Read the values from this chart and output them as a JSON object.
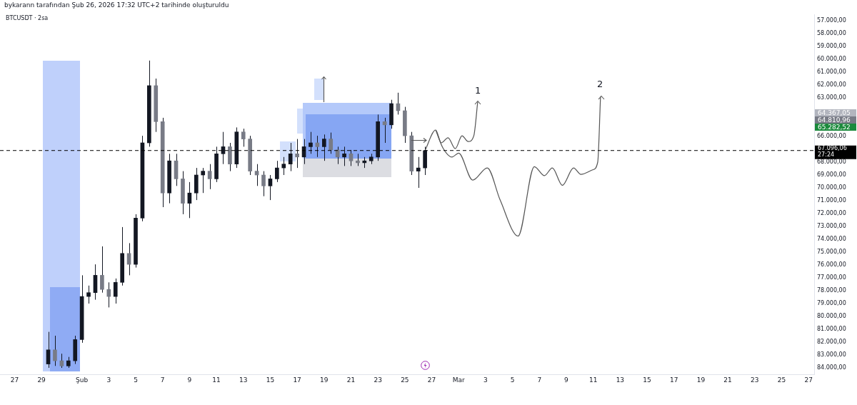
{
  "chart_data": {
    "type": "candlestick",
    "title": "BTCUSDT · 2sa",
    "color": "#131722",
    "annotations": [
      "bykarann tarafından Şub 26, 2026 17:32 UTC+2 tarihinde oluşturuldu",
      "1",
      "2",
      "64.367,05",
      "64.810,96",
      "65.282,52"
    ],
    "colors": [
      "#131722",
      "#787b86",
      "#787b86",
      "#131722",
      "#131722",
      "#131722",
      "#131722",
      "#131722",
      "#787b86",
      "#787b86",
      "#131722",
      "#131722",
      "#787b86",
      "#131722",
      "#131722",
      "#131722",
      "#787b86",
      "#787b86",
      "#131722",
      "#787b86",
      "#787b86",
      "#131722",
      "#131722",
      "#131722",
      "#787b86",
      "#131722",
      "#131722",
      "#787b86",
      "#131722",
      "#787b86",
      "#787b86",
      "#787b86",
      "#787b86",
      "#131722",
      "#131722",
      "#131722",
      "#131722",
      "#787b86",
      "#131722",
      "#131722",
      "#787b86",
      "#131722",
      "#787b86",
      "#787b86",
      "#131722",
      "#787b86",
      "#787b86",
      "#131722",
      "#131722",
      "#131722",
      "#787b86",
      "#131722",
      "#787b86",
      "#787b86",
      "#787b86",
      "#131722",
      "#131722"
    ],
    "x": [
      "2026-01-29T12:00",
      "2026-01-30",
      "2026-01-30T12:00",
      "2026-01-31",
      "2026-01-31T12:00",
      "2026-02-01",
      "2026-02-01T12:00",
      "2026-02-02",
      "2026-02-02T12:00",
      "2026-02-03",
      "2026-02-03T12:00",
      "2026-02-04",
      "2026-02-04T12:00",
      "2026-02-05",
      "2026-02-05T12:00",
      "2026-02-06",
      "2026-02-06T12:00",
      "2026-02-07",
      "2026-02-07T12:00",
      "2026-02-08",
      "2026-02-08T12:00",
      "2026-02-09",
      "2026-02-09T12:00",
      "2026-02-10",
      "2026-02-10T12:00",
      "2026-02-11",
      "2026-02-11T12:00",
      "2026-02-12",
      "2026-02-12T12:00",
      "2026-02-13",
      "2026-02-13T12:00",
      "2026-02-14",
      "2026-02-14T12:00",
      "2026-02-15",
      "2026-02-15T12:00",
      "2026-02-16",
      "2026-02-16T12:00",
      "2026-02-17",
      "2026-02-17T12:00",
      "2026-02-18",
      "2026-02-18T12:00",
      "2026-02-19",
      "2026-02-19T12:00",
      "2026-02-20",
      "2026-02-20T12:00",
      "2026-02-21",
      "2026-02-21T12:00",
      "2026-02-22",
      "2026-02-22T12:00",
      "2026-02-23",
      "2026-02-23T12:00",
      "2026-02-24",
      "2026-02-24T12:00",
      "2026-02-25",
      "2026-02-25T12:00",
      "2026-02-26",
      "2026-02-26T12:00"
    ],
    "ohlc": [
      [
        83700,
        84000,
        81200,
        82600
      ],
      [
        82600,
        83850,
        81500,
        83450
      ],
      [
        83450,
        84000,
        82900,
        83850
      ],
      [
        83850,
        84000,
        83150,
        83450
      ],
      [
        83450,
        83700,
        81500,
        81800
      ],
      [
        81800,
        82050,
        76800,
        78450
      ],
      [
        78450,
        79000,
        77600,
        78150
      ],
      [
        78150,
        78700,
        75950,
        76800
      ],
      [
        76800,
        78150,
        74550,
        77900
      ],
      [
        77900,
        79300,
        77350,
        78450
      ],
      [
        78450,
        79000,
        77050,
        77350
      ],
      [
        77350,
        77600,
        73050,
        75100
      ],
      [
        75100,
        76800,
        74300,
        75950
      ],
      [
        75950,
        76200,
        72050,
        72350
      ],
      [
        72350,
        72600,
        65950,
        66500
      ],
      [
        66500,
        66800,
        60100,
        62050
      ],
      [
        62050,
        65650,
        61500,
        64850
      ],
      [
        64850,
        71500,
        64550,
        70400
      ],
      [
        70400,
        71200,
        67350,
        67900
      ],
      [
        67900,
        69850,
        67350,
        69300
      ],
      [
        69300,
        72050,
        68700,
        71200
      ],
      [
        71200,
        72350,
        69550,
        70400
      ],
      [
        70400,
        70950,
        68450,
        69000
      ],
      [
        69000,
        70400,
        68450,
        68700
      ],
      [
        68700,
        70100,
        68150,
        69300
      ],
      [
        69300,
        69550,
        66800,
        67350
      ],
      [
        67350,
        68150,
        65650,
        66800
      ],
      [
        66800,
        68700,
        66500,
        68150
      ],
      [
        68150,
        68450,
        65300,
        65650
      ],
      [
        65650,
        66800,
        65400,
        66200
      ],
      [
        66200,
        69000,
        65950,
        68700
      ],
      [
        68700,
        69850,
        68150,
        69000
      ],
      [
        69000,
        70650,
        68700,
        69850
      ],
      [
        69850,
        70950,
        69000,
        69300
      ],
      [
        69300,
        69550,
        67900,
        68450
      ],
      [
        68450,
        69000,
        67600,
        68150
      ],
      [
        68150,
        68700,
        66500,
        67350
      ],
      [
        67350,
        68450,
        66200,
        67600
      ],
      [
        67600,
        68150,
        66200,
        66800
      ],
      [
        66800,
        67350,
        65650,
        66500
      ],
      [
        66500,
        67600,
        65950,
        66800
      ],
      [
        66800,
        67900,
        65850,
        66200
      ],
      [
        66200,
        67350,
        65700,
        67050
      ],
      [
        67050,
        68150,
        66800,
        67600
      ],
      [
        67600,
        68300,
        66800,
        67350
      ],
      [
        67350,
        68300,
        67050,
        67900
      ],
      [
        67900,
        68300,
        67350,
        68050
      ],
      [
        68050,
        68450,
        67600,
        67900
      ],
      [
        67900,
        68150,
        67350,
        67600
      ],
      [
        67600,
        67900,
        64300,
        64850
      ],
      [
        64850,
        66500,
        64550,
        65100
      ],
      [
        65100,
        65400,
        63150,
        63450
      ],
      [
        63450,
        64300,
        62600,
        64000
      ],
      [
        64000,
        66500,
        63700,
        65950
      ],
      [
        65950,
        69000,
        65650,
        68700
      ],
      [
        68700,
        70000,
        67600,
        68450
      ],
      [
        68450,
        69000,
        66800,
        67100
      ]
    ],
    "series": [
      {
        "type": "line",
        "color": "#555555",
        "x": [
          "2026-02-26T12:00",
          "2026-02-27T07:00",
          "2026-02-27T17:00",
          "2026-02-28T05:00",
          "2026-02-28T18:00",
          "2026-03-01T06:00",
          "2026-03-01T17:00",
          "2026-03-02T03:00",
          "2026-03-02T10:00"
        ],
        "values": [
          67100,
          65500,
          66500,
          66100,
          66950,
          65950,
          66400,
          65950,
          63300
        ]
      },
      {
        "type": "line",
        "color": "#555555",
        "x": [
          "2026-02-27T07:00",
          "2026-02-27T20:00",
          "2026-02-28T12:00",
          "2026-03-01T00:00",
          "2026-03-02T01:00",
          "2026-03-03T03:00",
          "2026-03-04T02:00",
          "2026-03-05T10:00",
          "2026-03-06T15:00",
          "2026-03-07T09:00",
          "2026-03-07T23:00",
          "2026-03-08T17:00",
          "2026-03-09T13:00",
          "2026-03-10T02:00",
          "2026-03-10T23:00",
          "2026-03-11T08:00",
          "2026-03-11T13:00"
        ],
        "values": [
          65500,
          66900,
          67600,
          67300,
          69400,
          68450,
          70950,
          73750,
          68350,
          69050,
          68450,
          69800,
          68450,
          68950,
          68600,
          68000,
          62900
        ]
      }
    ],
    "xlim": [
      "2026-01-25T22:00",
      "2026-03-27T10:00"
    ],
    "xticks": [
      {
        "value": "2026-01-27",
        "label": "27"
      },
      {
        "value": "2026-01-29",
        "label": "29"
      },
      {
        "value": "2026-02-01",
        "label": "Şub"
      },
      {
        "value": "2026-02-03",
        "label": "3"
      },
      {
        "value": "2026-02-05",
        "label": "5"
      },
      {
        "value": "2026-02-07",
        "label": "7"
      },
      {
        "value": "2026-02-09",
        "label": "9"
      },
      {
        "value": "2026-02-11",
        "label": "11"
      },
      {
        "value": "2026-02-13",
        "label": "13"
      },
      {
        "value": "2026-02-15",
        "label": "15"
      },
      {
        "value": "2026-02-17",
        "label": "17"
      },
      {
        "value": "2026-02-19",
        "label": "19"
      },
      {
        "value": "2026-02-21",
        "label": "21"
      },
      {
        "value": "2026-02-23",
        "label": "23"
      },
      {
        "value": "2026-02-25",
        "label": "25"
      },
      {
        "value": "2026-02-27",
        "label": "27"
      },
      {
        "value": "2026-03-01",
        "label": "Mar"
      },
      {
        "value": "2026-03-03",
        "label": "3"
      },
      {
        "value": "2026-03-05",
        "label": "5"
      },
      {
        "value": "2026-03-07",
        "label": "7"
      },
      {
        "value": "2026-03-09",
        "label": "9"
      },
      {
        "value": "2026-03-11",
        "label": "11"
      },
      {
        "value": "2026-03-13",
        "label": "13"
      },
      {
        "value": "2026-03-15",
        "label": "15"
      },
      {
        "value": "2026-03-17",
        "label": "17"
      },
      {
        "value": "2026-03-19",
        "label": "19"
      },
      {
        "value": "2026-03-21",
        "label": "21"
      },
      {
        "value": "2026-03-23",
        "label": "23"
      },
      {
        "value": "2026-03-25",
        "label": "25"
      },
      {
        "value": "2026-03-27",
        "label": "27"
      }
    ],
    "ylim": [
      84500,
      56500
    ],
    "yticks": [
      {
        "value": 57000,
        "label": "57.000,00"
      },
      {
        "value": 58000,
        "label": "58.000,00"
      },
      {
        "value": 59000,
        "label": "59.000,00"
      },
      {
        "value": 60000,
        "label": "60.000,00"
      },
      {
        "value": 61000,
        "label": "61.000,00"
      },
      {
        "value": 62000,
        "label": "62.000,00"
      },
      {
        "value": 63000,
        "label": "63.000,00"
      },
      {
        "value": 66000,
        "label": "66.000,00"
      },
      {
        "value": 68000,
        "label": "68.000,00"
      },
      {
        "value": 69000,
        "label": "69.000,00"
      },
      {
        "value": 70000,
        "label": "70.000,00"
      },
      {
        "value": 71000,
        "label": "71.000,00"
      },
      {
        "value": 72000,
        "label": "72.000,00"
      },
      {
        "value": 73000,
        "label": "73.000,00"
      },
      {
        "value": 74000,
        "label": "74.000,00"
      },
      {
        "value": 75000,
        "label": "75.000,00"
      },
      {
        "value": 76000,
        "label": "76.000,00"
      },
      {
        "value": 77000,
        "label": "77.000,00"
      },
      {
        "value": 78000,
        "label": "78.000,00"
      },
      {
        "value": 79000,
        "label": "79.000,00"
      },
      {
        "value": 80000,
        "label": "80.000,00"
      },
      {
        "value": 81000,
        "label": "81.000,00"
      },
      {
        "value": 82000,
        "label": "82.000,00"
      },
      {
        "value": 83000,
        "label": "83.000,00"
      },
      {
        "value": 84000,
        "label": "84.000,00"
      }
    ],
    "ref_lines": [
      {
        "axis": "y",
        "value": 67096.06,
        "label": "67.096,06\n27:24",
        "color": "#000000",
        "line_style": "dashed"
      }
    ],
    "grid": false,
    "legend": false,
    "marker": "none"
  }
}
